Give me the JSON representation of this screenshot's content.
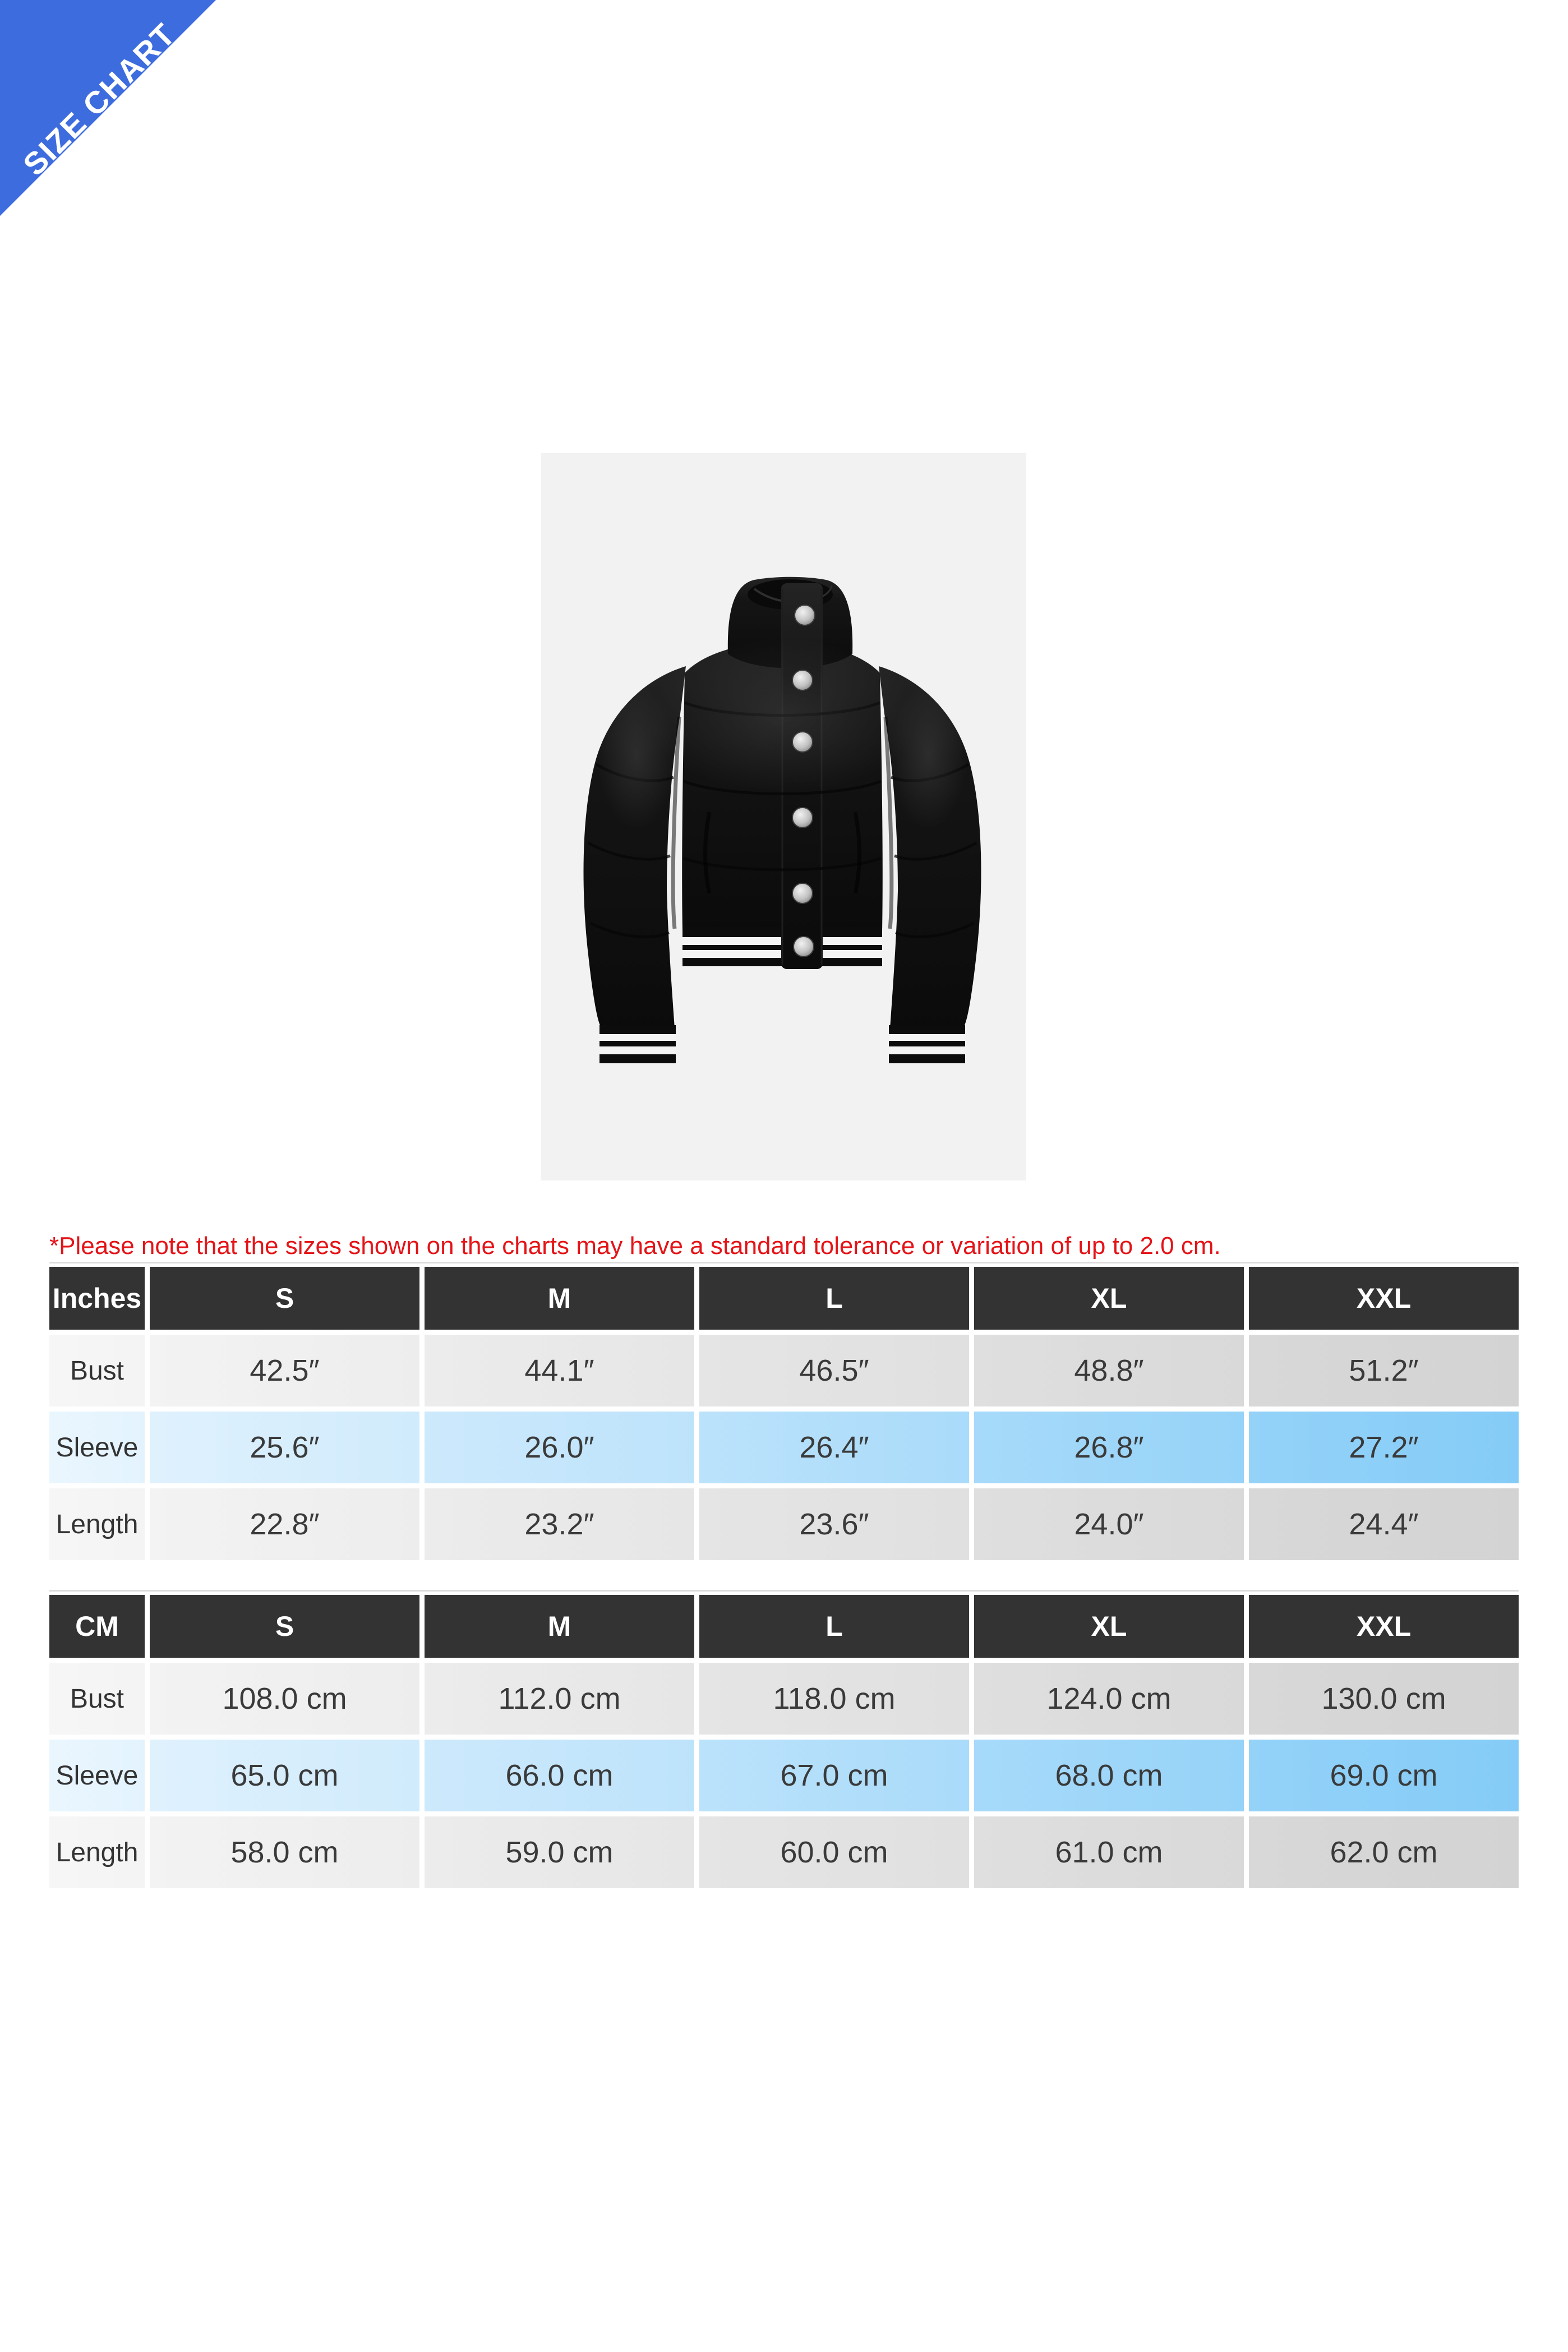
{
  "ribbon": {
    "label": "SIZE CHART",
    "color": "#3d6cde"
  },
  "product_image": {
    "description": "black cropped puffer jacket with high stand collar, silver snap buttons, striped rib hem and cuffs",
    "background": "#f2f2f2"
  },
  "note": {
    "text": "*Please note that the sizes shown on the charts may have a standard tolerance or variation of up to 2.0 cm.",
    "color": "#e41418"
  },
  "table_style": {
    "header_bg": "#333333",
    "highlight_row_color": "#84ccf7"
  },
  "tables": [
    {
      "unit_label": "Inches",
      "columns": [
        "S",
        "M",
        "L",
        "XL",
        "XXL"
      ],
      "rows": [
        {
          "label": "Bust",
          "highlight": false,
          "values": [
            "42.5″",
            "44.1″",
            "46.5″",
            "48.8″",
            "51.2″"
          ]
        },
        {
          "label": "Sleeve",
          "highlight": true,
          "values": [
            "25.6″",
            "26.0″",
            "26.4″",
            "26.8″",
            "27.2″"
          ]
        },
        {
          "label": "Length",
          "highlight": false,
          "values": [
            "22.8″",
            "23.2″",
            "23.6″",
            "24.0″",
            "24.4″"
          ]
        }
      ]
    },
    {
      "unit_label": "CM",
      "columns": [
        "S",
        "M",
        "L",
        "XL",
        "XXL"
      ],
      "rows": [
        {
          "label": "Bust",
          "highlight": false,
          "values": [
            "108.0 cm",
            "112.0 cm",
            "118.0 cm",
            "124.0 cm",
            "130.0 cm"
          ]
        },
        {
          "label": "Sleeve",
          "highlight": true,
          "values": [
            "65.0 cm",
            "66.0 cm",
            "67.0 cm",
            "68.0 cm",
            "69.0 cm"
          ]
        },
        {
          "label": "Length",
          "highlight": false,
          "values": [
            "58.0 cm",
            "59.0 cm",
            "60.0 cm",
            "61.0 cm",
            "62.0 cm"
          ]
        }
      ]
    }
  ]
}
